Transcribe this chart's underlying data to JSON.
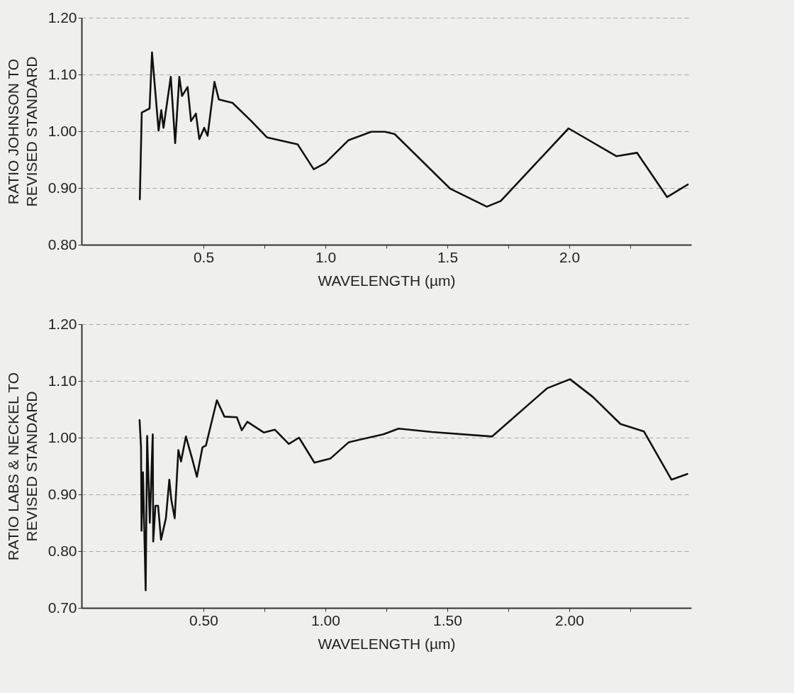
{
  "chart_data": [
    {
      "type": "line",
      "xlabel": "WAVELENGTH (µm)",
      "ylabel": "RATIO JOHNSON TO\nREVISED STANDARD",
      "xlim": [
        0,
        2.5
      ],
      "ylim": [
        0.8,
        1.2
      ],
      "xticks": [
        0.5,
        {
          "value": 0.75,
          "label": null
        },
        {
          "value": 1,
          "label": "1.0"
        },
        {
          "value": 1.25,
          "label": null
        },
        1.5,
        {
          "value": 1.75,
          "label": null
        },
        {
          "value": 2,
          "label": "2.0"
        },
        {
          "value": 2.25,
          "label": null
        }
      ],
      "yticks": [
        {
          "value": 0.8,
          "label": "0.80"
        },
        {
          "value": 0.9,
          "label": "0.90"
        },
        {
          "value": 1.0,
          "label": "1.00"
        },
        {
          "value": 1.1,
          "label": "1.10"
        },
        {
          "value": 1.2,
          "label": "1.20"
        }
      ],
      "grid": "y",
      "marker": "none",
      "series": [
        {
          "color": "#111111",
          "x": [
            0.239,
            0.247,
            0.279,
            0.289,
            0.316,
            0.327,
            0.336,
            0.35,
            0.366,
            0.384,
            0.401,
            0.412,
            0.435,
            0.449,
            0.469,
            0.483,
            0.503,
            0.517,
            0.545,
            0.563,
            0.619,
            0.696,
            0.761,
            0.886,
            0.952,
            1.0,
            1.094,
            1.188,
            1.244,
            1.284,
            1.511,
            1.662,
            1.719,
            1.997,
            2.193,
            2.278,
            2.401,
            2.486
          ],
          "values": [
            0.88,
            1.033,
            1.04,
            1.139,
            1.001,
            1.037,
            1.006,
            1.048,
            1.096,
            0.979,
            1.096,
            1.062,
            1.078,
            1.018,
            1.031,
            0.986,
            1.006,
            0.992,
            1.087,
            1.056,
            1.05,
            1.018,
            0.989,
            0.977,
            0.933,
            0.944,
            0.984,
            0.999,
            0.999,
            0.995,
            0.899,
            0.867,
            0.877,
            1.005,
            0.956,
            0.962,
            0.884,
            0.906
          ]
        }
      ]
    },
    {
      "type": "line",
      "xlabel": "WAVELENGTH (µm)",
      "ylabel": "RATIO LABS & NECKEL TO\nREVISED STANDARD",
      "xlim": [
        0,
        2.5
      ],
      "ylim": [
        0.7,
        1.2
      ],
      "xticks": [
        {
          "value": 0.5,
          "label": "0.50"
        },
        {
          "value": 0.75,
          "label": null
        },
        {
          "value": 1,
          "label": "1.00"
        },
        {
          "value": 1.25,
          "label": null
        },
        {
          "value": 1.5,
          "label": "1.50"
        },
        {
          "value": 1.75,
          "label": null
        },
        {
          "value": 2,
          "label": "2.00"
        },
        {
          "value": 2.25,
          "label": null
        }
      ],
      "yticks": [
        {
          "value": 0.7,
          "label": "0.70"
        },
        {
          "value": 0.8,
          "label": "0.80"
        },
        {
          "value": 0.9,
          "label": "0.90"
        },
        {
          "value": 1.0,
          "label": "1.00"
        },
        {
          "value": 1.1,
          "label": "1.10"
        },
        {
          "value": 1.2,
          "label": "1.20"
        }
      ],
      "grid": "y",
      "marker": "none",
      "series": [
        {
          "color": "#111111",
          "x": [
            0.238,
            0.244,
            0.246,
            0.252,
            0.263,
            0.269,
            0.28,
            0.292,
            0.294,
            0.303,
            0.314,
            0.326,
            0.346,
            0.36,
            0.368,
            0.382,
            0.397,
            0.408,
            0.428,
            0.453,
            0.473,
            0.496,
            0.51,
            0.555,
            0.586,
            0.637,
            0.657,
            0.68,
            0.748,
            0.793,
            0.85,
            0.892,
            0.955,
            1.02,
            1.096,
            1.238,
            1.3,
            1.436,
            1.683,
            1.909,
            2.003,
            2.096,
            2.21,
            2.306,
            2.419,
            2.484
          ],
          "values": [
            1.031,
            0.983,
            0.836,
            0.939,
            0.731,
            1.003,
            0.85,
            1.006,
            0.817,
            0.88,
            0.88,
            0.82,
            0.858,
            0.926,
            0.891,
            0.858,
            0.978,
            0.958,
            1.002,
            0.964,
            0.931,
            0.983,
            0.986,
            1.066,
            1.037,
            1.036,
            1.013,
            1.028,
            1.009,
            1.014,
            0.989,
            1.0,
            0.956,
            0.963,
            0.992,
            1.006,
            1.016,
            1.01,
            1.002,
            1.087,
            1.103,
            1.072,
            1.024,
            1.011,
            0.926,
            0.936
          ]
        }
      ]
    }
  ]
}
